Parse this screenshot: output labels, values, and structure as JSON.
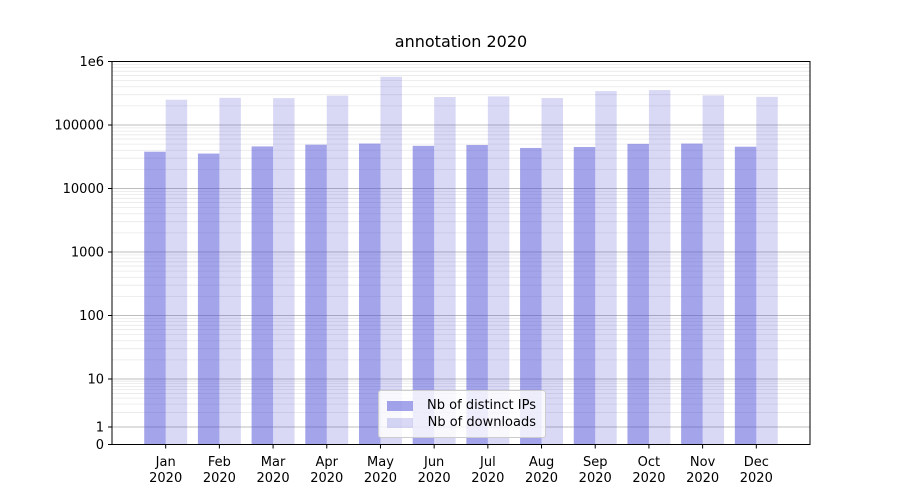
{
  "chart_data": {
    "type": "bar",
    "title": "annotation 2020",
    "categories": [
      "Jan",
      "Feb",
      "Mar",
      "Apr",
      "May",
      "Jun",
      "Jul",
      "Aug",
      "Sep",
      "Oct",
      "Nov",
      "Dec"
    ],
    "category_year": "2020",
    "series": [
      {
        "name": "Nb of distinct IPs",
        "color": "#5050d7",
        "alpha": 0.52,
        "values": [
          38000,
          35500,
          46000,
          49000,
          51000,
          47000,
          48500,
          43500,
          45000,
          50500,
          51000,
          45500
        ]
      },
      {
        "name": "Nb of downloads",
        "color": "#5050d7",
        "alpha": 0.22,
        "values": [
          250000,
          268000,
          265000,
          290000,
          575000,
          276000,
          282000,
          266000,
          342000,
          355000,
          292000,
          278000
        ]
      }
    ],
    "yscale": "symlog",
    "ylim": [
      0,
      1000000
    ],
    "yticks": [
      0,
      1,
      10,
      100,
      1000,
      10000,
      100000,
      1000000
    ],
    "ytick_labels": [
      "0",
      "1",
      "10",
      "100",
      "1000",
      "10000",
      "100000",
      "1e6"
    ],
    "grid": "major-and-minor",
    "legend_position": "lower center",
    "bar_width": 0.4
  },
  "colors": {
    "major_grid": "#bdbdbd",
    "minor_grid": "#e8e8e8",
    "spine": "#000000",
    "tick_text": "#000000"
  }
}
